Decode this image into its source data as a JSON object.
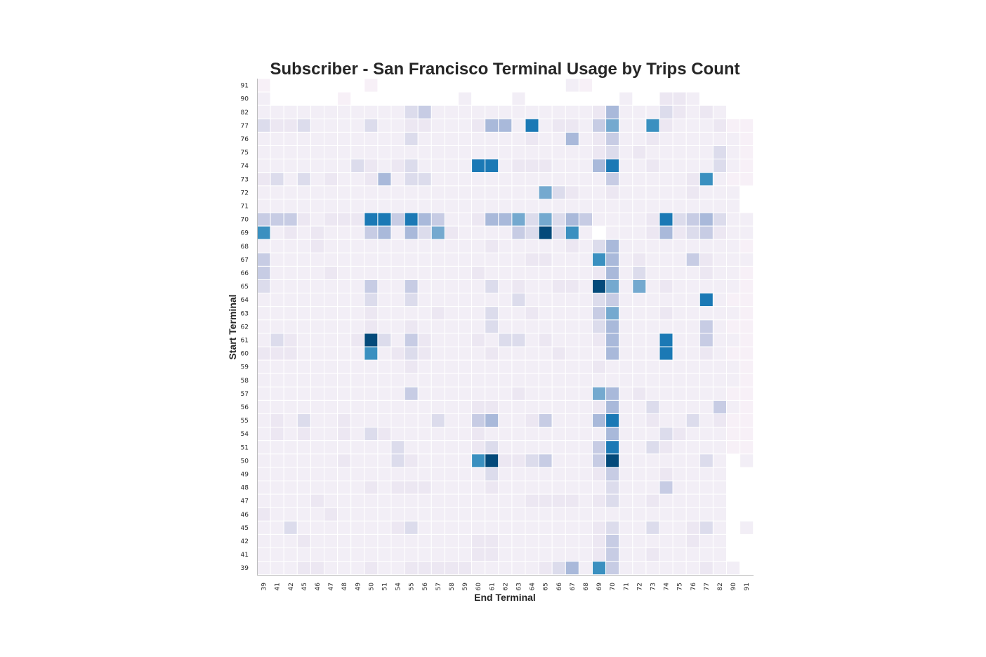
{
  "chart_data": {
    "type": "heatmap",
    "title": "Subscriber - San Francisco Terminal Usage by Trips Count",
    "xlabel": "End Terminal",
    "ylabel": "Start Terminal",
    "x_categories": [
      "39",
      "41",
      "42",
      "45",
      "46",
      "47",
      "48",
      "49",
      "50",
      "51",
      "54",
      "55",
      "56",
      "57",
      "58",
      "59",
      "60",
      "61",
      "62",
      "63",
      "64",
      "65",
      "66",
      "67",
      "68",
      "69",
      "70",
      "71",
      "72",
      "73",
      "74",
      "75",
      "76",
      "77",
      "82",
      "90",
      "91"
    ],
    "y_categories": [
      "91",
      "90",
      "82",
      "77",
      "76",
      "75",
      "74",
      "73",
      "72",
      "71",
      "70",
      "69",
      "68",
      "67",
      "66",
      "65",
      "64",
      "63",
      "62",
      "61",
      "60",
      "59",
      "58",
      "57",
      "56",
      "55",
      "54",
      "51",
      "50",
      "49",
      "48",
      "47",
      "46",
      "45",
      "42",
      "41",
      "39"
    ],
    "value_scale": "0 = near-empty (very light) to 9 = maximum (darkest blue); approximate levels read from cell color",
    "color_levels": [
      "#f7f0f7",
      "#f2eef6",
      "#ece7f2",
      "#dcdcec",
      "#c7cce4",
      "#a9b9da",
      "#74a9cf",
      "#3a90c0",
      "#1b79b5",
      "#034a7a"
    ],
    "grid": false,
    "missing_cells": {
      "91": "2-8,10-23,26-37",
      "90": "2-6,8-15,17-19,21-27,29-30,34-37",
      "82": "36-37",
      "72": "37",
      "71": "37",
      "69": "26",
      "50": "36",
      "49": "36-37",
      "48": "36-37",
      "47": "36-37",
      "46": "36-37",
      "45": "36",
      "42": "36-37",
      "41": "36-37",
      "39": "37"
    },
    "matrix": [
      [
        0,
        0,
        0,
        2,
        0,
        0,
        0,
        0,
        0,
        0,
        0,
        0,
        0,
        0,
        0,
        0,
        0,
        0,
        0,
        0,
        0,
        0,
        0,
        1,
        0,
        1,
        1,
        1,
        0,
        0,
        0,
        0,
        0,
        0,
        0,
        0,
        0
      ],
      [
        1,
        0,
        0,
        0,
        0,
        0,
        0,
        1,
        0,
        0,
        0,
        0,
        1,
        0,
        1,
        1,
        0,
        1,
        0,
        1,
        0,
        1,
        0,
        0,
        0,
        0,
        0,
        1,
        1,
        0,
        2,
        2,
        1,
        0,
        0,
        0,
        0
      ],
      [
        1,
        1,
        1,
        1,
        1,
        1,
        1,
        1,
        1,
        1,
        1,
        3,
        4,
        1,
        1,
        1,
        1,
        1,
        1,
        1,
        1,
        1,
        1,
        1,
        1,
        2,
        5,
        1,
        1,
        1,
        3,
        2,
        1,
        2,
        1,
        0,
        0
      ],
      [
        3,
        2,
        2,
        3,
        1,
        1,
        1,
        1,
        3,
        1,
        1,
        2,
        2,
        1,
        1,
        1,
        2,
        5,
        5,
        1,
        8,
        1,
        2,
        2,
        1,
        4,
        6,
        1,
        1,
        7,
        2,
        1,
        1,
        1,
        2,
        0,
        0
      ],
      [
        1,
        1,
        1,
        1,
        1,
        1,
        1,
        1,
        1,
        1,
        1,
        3,
        1,
        1,
        1,
        1,
        1,
        1,
        1,
        1,
        2,
        1,
        1,
        5,
        1,
        2,
        4,
        1,
        1,
        2,
        1,
        1,
        1,
        1,
        1,
        1,
        0
      ],
      [
        1,
        1,
        1,
        1,
        1,
        1,
        1,
        1,
        1,
        1,
        1,
        1,
        1,
        1,
        1,
        1,
        1,
        1,
        1,
        1,
        1,
        1,
        1,
        1,
        1,
        2,
        3,
        1,
        2,
        1,
        1,
        1,
        1,
        1,
        3,
        1,
        0
      ],
      [
        1,
        1,
        1,
        1,
        1,
        1,
        1,
        3,
        2,
        1,
        2,
        3,
        1,
        1,
        1,
        1,
        8,
        8,
        1,
        2,
        2,
        2,
        1,
        1,
        1,
        5,
        8,
        1,
        1,
        2,
        1,
        1,
        1,
        1,
        3,
        1,
        0
      ],
      [
        2,
        3,
        1,
        3,
        1,
        2,
        1,
        1,
        2,
        5,
        1,
        3,
        3,
        1,
        1,
        1,
        1,
        1,
        1,
        1,
        1,
        1,
        1,
        1,
        1,
        1,
        4,
        1,
        1,
        1,
        1,
        1,
        2,
        7,
        1,
        0,
        0
      ],
      [
        1,
        1,
        1,
        1,
        1,
        1,
        1,
        1,
        1,
        1,
        1,
        1,
        1,
        1,
        1,
        1,
        1,
        1,
        1,
        1,
        1,
        6,
        3,
        2,
        1,
        1,
        2,
        1,
        1,
        1,
        1,
        1,
        2,
        1,
        1,
        1,
        0
      ],
      [
        1,
        1,
        1,
        1,
        1,
        1,
        1,
        1,
        1,
        1,
        1,
        1,
        1,
        1,
        1,
        1,
        1,
        1,
        1,
        1,
        1,
        1,
        1,
        1,
        1,
        1,
        1,
        1,
        1,
        1,
        1,
        1,
        1,
        1,
        1,
        1,
        0
      ],
      [
        4,
        4,
        4,
        2,
        1,
        2,
        2,
        2,
        8,
        8,
        4,
        8,
        5,
        4,
        1,
        1,
        2,
        5,
        5,
        6,
        3,
        6,
        3,
        5,
        4,
        1,
        1,
        1,
        1,
        2,
        8,
        3,
        4,
        5,
        3,
        1,
        1
      ],
      [
        7,
        1,
        2,
        1,
        2,
        1,
        1,
        1,
        4,
        5,
        1,
        5,
        3,
        6,
        2,
        1,
        1,
        1,
        1,
        4,
        3,
        9,
        3,
        7,
        1,
        0,
        1,
        1,
        1,
        2,
        5,
        2,
        3,
        4,
        2,
        1,
        1
      ],
      [
        1,
        1,
        1,
        1,
        2,
        1,
        1,
        1,
        1,
        1,
        1,
        1,
        1,
        1,
        1,
        1,
        1,
        2,
        1,
        1,
        1,
        1,
        1,
        2,
        1,
        3,
        5,
        1,
        1,
        1,
        1,
        1,
        1,
        1,
        1,
        1,
        0
      ],
      [
        4,
        1,
        1,
        1,
        1,
        1,
        1,
        1,
        1,
        1,
        1,
        1,
        1,
        1,
        1,
        1,
        1,
        1,
        1,
        1,
        2,
        2,
        1,
        1,
        1,
        7,
        5,
        1,
        2,
        1,
        1,
        1,
        4,
        2,
        1,
        1,
        1
      ],
      [
        4,
        1,
        1,
        1,
        1,
        2,
        1,
        1,
        1,
        1,
        1,
        1,
        1,
        1,
        1,
        1,
        2,
        1,
        1,
        1,
        1,
        1,
        1,
        1,
        1,
        2,
        5,
        1,
        3,
        1,
        1,
        1,
        1,
        2,
        1,
        1,
        0
      ],
      [
        3,
        1,
        1,
        1,
        1,
        1,
        1,
        1,
        4,
        1,
        1,
        4,
        1,
        1,
        1,
        1,
        1,
        3,
        1,
        2,
        1,
        1,
        2,
        2,
        1,
        9,
        6,
        1,
        6,
        1,
        2,
        1,
        1,
        1,
        1,
        1,
        0
      ],
      [
        1,
        1,
        1,
        1,
        1,
        1,
        1,
        1,
        3,
        1,
        1,
        3,
        1,
        1,
        1,
        1,
        1,
        1,
        1,
        3,
        1,
        1,
        1,
        1,
        1,
        3,
        4,
        1,
        1,
        1,
        1,
        1,
        1,
        8,
        1,
        0,
        0
      ],
      [
        1,
        1,
        1,
        1,
        1,
        1,
        1,
        1,
        2,
        1,
        1,
        1,
        1,
        2,
        1,
        1,
        1,
        3,
        1,
        1,
        2,
        1,
        1,
        1,
        1,
        4,
        6,
        1,
        1,
        1,
        2,
        1,
        1,
        1,
        1,
        1,
        0
      ],
      [
        1,
        1,
        1,
        1,
        1,
        1,
        1,
        1,
        2,
        1,
        1,
        2,
        1,
        1,
        1,
        1,
        1,
        3,
        1,
        1,
        1,
        1,
        1,
        1,
        1,
        3,
        5,
        1,
        1,
        1,
        1,
        1,
        1,
        4,
        1,
        0,
        0
      ],
      [
        1,
        3,
        2,
        1,
        1,
        1,
        1,
        2,
        9,
        3,
        1,
        4,
        2,
        1,
        1,
        1,
        2,
        1,
        3,
        3,
        1,
        2,
        1,
        1,
        1,
        2,
        5,
        1,
        1,
        1,
        8,
        1,
        1,
        4,
        1,
        1,
        0
      ],
      [
        2,
        2,
        2,
        1,
        1,
        1,
        1,
        1,
        7,
        1,
        2,
        3,
        2,
        1,
        1,
        1,
        1,
        2,
        1,
        1,
        1,
        1,
        2,
        1,
        1,
        1,
        5,
        1,
        1,
        1,
        8,
        1,
        1,
        2,
        1,
        0,
        0
      ],
      [
        1,
        1,
        1,
        1,
        1,
        1,
        1,
        1,
        1,
        1,
        1,
        2,
        1,
        1,
        1,
        1,
        1,
        1,
        1,
        1,
        1,
        1,
        1,
        1,
        1,
        2,
        1,
        1,
        1,
        1,
        1,
        1,
        1,
        1,
        1,
        1,
        0
      ],
      [
        1,
        1,
        1,
        1,
        1,
        1,
        1,
        1,
        1,
        1,
        1,
        1,
        1,
        1,
        1,
        1,
        1,
        1,
        1,
        1,
        1,
        1,
        1,
        1,
        1,
        1,
        1,
        1,
        1,
        1,
        1,
        1,
        1,
        1,
        1,
        1,
        0
      ],
      [
        1,
        1,
        1,
        1,
        1,
        1,
        1,
        1,
        1,
        1,
        1,
        4,
        1,
        1,
        1,
        1,
        1,
        1,
        1,
        2,
        1,
        1,
        1,
        1,
        1,
        6,
        5,
        1,
        2,
        1,
        1,
        1,
        1,
        1,
        1,
        0,
        0
      ],
      [
        1,
        1,
        1,
        1,
        1,
        1,
        1,
        1,
        1,
        1,
        1,
        1,
        1,
        1,
        1,
        1,
        2,
        2,
        1,
        1,
        1,
        1,
        1,
        1,
        1,
        2,
        5,
        1,
        1,
        3,
        1,
        1,
        1,
        1,
        4,
        1,
        0
      ],
      [
        1,
        2,
        1,
        3,
        1,
        1,
        2,
        1,
        1,
        1,
        1,
        1,
        1,
        3,
        1,
        1,
        4,
        5,
        1,
        1,
        2,
        4,
        1,
        1,
        1,
        5,
        8,
        1,
        1,
        2,
        1,
        1,
        3,
        1,
        2,
        0,
        0
      ],
      [
        1,
        2,
        1,
        2,
        1,
        1,
        2,
        1,
        3,
        2,
        1,
        1,
        1,
        1,
        1,
        1,
        2,
        1,
        1,
        1,
        1,
        1,
        1,
        1,
        1,
        1,
        5,
        1,
        1,
        1,
        3,
        2,
        1,
        1,
        1,
        0,
        0
      ],
      [
        1,
        1,
        1,
        1,
        1,
        1,
        1,
        1,
        1,
        1,
        3,
        1,
        1,
        1,
        1,
        1,
        2,
        3,
        1,
        1,
        1,
        1,
        1,
        1,
        1,
        4,
        8,
        1,
        1,
        3,
        2,
        1,
        1,
        1,
        1,
        0,
        0
      ],
      [
        1,
        1,
        1,
        1,
        1,
        1,
        2,
        1,
        1,
        1,
        3,
        2,
        1,
        1,
        1,
        1,
        7,
        9,
        2,
        2,
        3,
        4,
        1,
        1,
        1,
        4,
        9,
        1,
        1,
        1,
        1,
        1,
        1,
        3,
        1,
        0,
        1
      ],
      [
        1,
        1,
        1,
        1,
        1,
        1,
        1,
        1,
        1,
        1,
        1,
        1,
        1,
        1,
        1,
        1,
        1,
        3,
        1,
        1,
        1,
        1,
        1,
        1,
        1,
        2,
        4,
        1,
        1,
        1,
        2,
        1,
        1,
        1,
        1,
        0,
        0
      ],
      [
        1,
        1,
        1,
        1,
        1,
        1,
        1,
        1,
        2,
        1,
        2,
        2,
        2,
        1,
        1,
        1,
        1,
        2,
        1,
        1,
        1,
        1,
        1,
        1,
        1,
        1,
        3,
        1,
        1,
        1,
        4,
        1,
        1,
        1,
        1,
        0,
        0
      ],
      [
        1,
        1,
        1,
        1,
        2,
        1,
        1,
        1,
        1,
        1,
        1,
        1,
        1,
        1,
        1,
        1,
        1,
        1,
        1,
        1,
        2,
        2,
        2,
        2,
        1,
        2,
        3,
        1,
        1,
        2,
        1,
        1,
        1,
        1,
        1,
        0,
        0
      ],
      [
        2,
        1,
        1,
        1,
        1,
        2,
        1,
        1,
        1,
        1,
        1,
        1,
        1,
        1,
        1,
        1,
        1,
        1,
        1,
        1,
        1,
        1,
        1,
        1,
        1,
        1,
        1,
        1,
        1,
        1,
        1,
        1,
        1,
        1,
        1,
        0,
        0
      ],
      [
        1,
        1,
        3,
        1,
        1,
        1,
        1,
        1,
        1,
        1,
        2,
        3,
        1,
        1,
        1,
        1,
        1,
        1,
        1,
        1,
        1,
        1,
        1,
        1,
        1,
        2,
        3,
        1,
        1,
        3,
        1,
        1,
        2,
        3,
        1,
        0,
        1
      ],
      [
        1,
        1,
        1,
        2,
        1,
        1,
        1,
        1,
        1,
        1,
        1,
        1,
        1,
        1,
        1,
        1,
        2,
        2,
        1,
        1,
        1,
        1,
        1,
        1,
        1,
        2,
        4,
        1,
        1,
        1,
        1,
        1,
        2,
        1,
        1,
        0,
        0
      ],
      [
        1,
        1,
        1,
        1,
        1,
        1,
        1,
        1,
        1,
        1,
        1,
        1,
        1,
        1,
        1,
        1,
        2,
        2,
        1,
        1,
        1,
        1,
        1,
        1,
        1,
        2,
        4,
        1,
        1,
        2,
        1,
        1,
        1,
        1,
        1,
        0,
        0
      ],
      [
        1,
        1,
        1,
        2,
        2,
        1,
        1,
        1,
        2,
        1,
        1,
        2,
        2,
        2,
        2,
        2,
        1,
        1,
        1,
        1,
        1,
        2,
        3,
        5,
        1,
        7,
        4,
        1,
        1,
        1,
        1,
        1,
        1,
        2,
        1,
        1,
        0
      ]
    ]
  }
}
